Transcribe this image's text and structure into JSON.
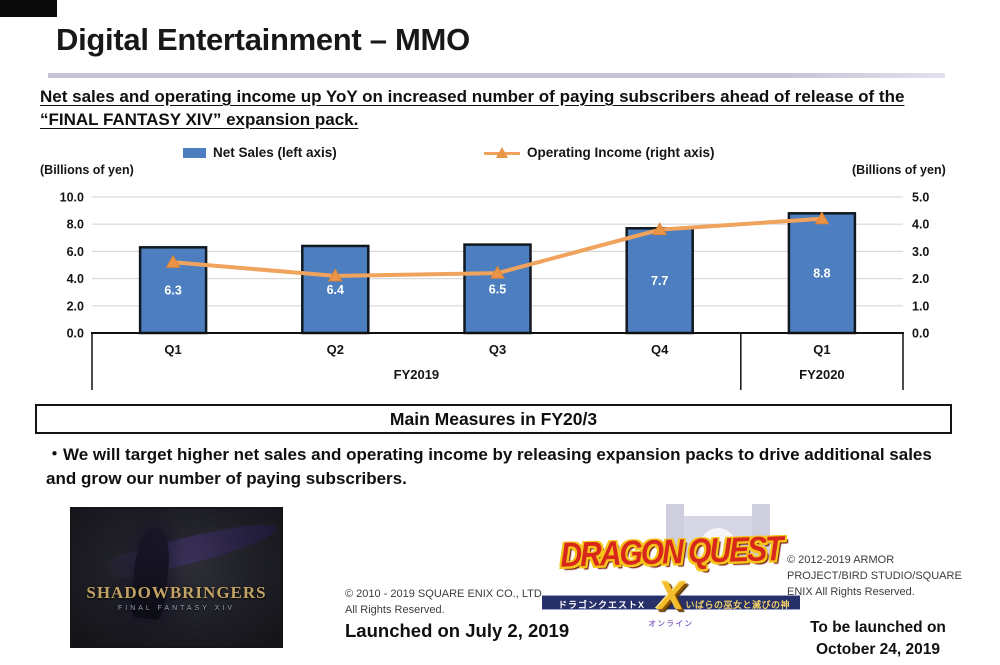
{
  "page": {
    "title": "Digital Entertainment – MMO"
  },
  "headline": "Net sales and operating income up YoY on increased number of paying subscribers ahead of release of the “FINAL FANTASY XIV” expansion pack.",
  "legend": {
    "net_sales": "Net Sales (left axis)",
    "operating_income": "Operating Income (right axis)"
  },
  "axes": {
    "left_caption": "(Billions of yen)",
    "right_caption": "(Billions of yen)"
  },
  "chart_data": {
    "type": "bar+line",
    "categories": [
      "Q1",
      "Q2",
      "Q3",
      "Q4",
      "Q1"
    ],
    "group_labels": [
      {
        "label": "FY2019",
        "span": 4
      },
      {
        "label": "FY2020",
        "span": 1
      }
    ],
    "series": [
      {
        "name": "Net Sales (left axis)",
        "type": "bar",
        "axis": "left",
        "values": [
          6.3,
          6.4,
          6.5,
          7.7,
          8.8
        ],
        "color": "#4d7ebf",
        "border_color": "#101820"
      },
      {
        "name": "Operating Income (right axis)",
        "type": "line",
        "axis": "right",
        "values": [
          2.6,
          2.1,
          2.2,
          3.8,
          4.2
        ],
        "color": "#f0a35c",
        "marker": "triangle",
        "marker_color": "#ea9447"
      }
    ],
    "bar_labels": [
      "6.3",
      "6.4",
      "6.5",
      "7.7",
      "8.8"
    ],
    "left_axis": {
      "label": "(Billions of yen)",
      "min": 0,
      "max": 10,
      "step": 2,
      "ticks": [
        "10.0",
        "8.0",
        "6.0",
        "4.0",
        "2.0",
        "0.0"
      ]
    },
    "right_axis": {
      "label": "(Billions of yen)",
      "min": 0,
      "max": 5,
      "step": 1,
      "ticks": [
        "5.0",
        "4.0",
        "3.0",
        "2.0",
        "1.0",
        "0.0"
      ]
    },
    "grid": true,
    "legend_position": "top",
    "grid_color": "#d9d9d9",
    "bar_label_color": "#ffffff"
  },
  "measures": {
    "title": "Main Measures in FY20/3",
    "bullet": "・We will target higher net sales and operating income by releasing expansion packs to drive additional sales and grow our number of paying subscribers."
  },
  "footer": {
    "ffxiv": {
      "logo_title": "SHADOWBRINGERS",
      "logo_subtitle": "FINAL FANTASY XIV",
      "copyright": "© 2010 - 2019 SQUARE ENIX CO., LTD.",
      "rights": "All Rights Reserved.",
      "launch": "Launched on July 2, 2019"
    },
    "dqx": {
      "logo_title": "DRAGON QUEST",
      "logo_x": "X",
      "banner_left": "ドラゴンクエストX",
      "banner_right": "いばらの巫女と滅びの神",
      "logo_sub": "オンライン",
      "copyright": "© 2012-2019 ARMOR PROJECT/BIRD STUDIO/SQUARE ENIX All Rights Reserved.",
      "launch_line1": "To be launched on",
      "launch_line2": "October 24, 2019"
    }
  },
  "colors": {
    "bar_fill": "#4d7ebf",
    "line_stroke": "#f0a35c",
    "title_rule": "#c6c3d6",
    "gridline": "#d9d9d9"
  }
}
